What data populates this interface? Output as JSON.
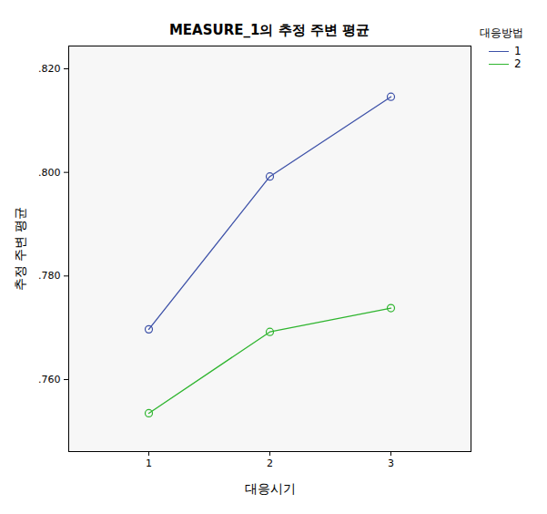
{
  "chart_data": {
    "type": "line",
    "title": "MEASURE_1의 추정 주변 평균",
    "x_label": "대응시기",
    "y_label": "추정 주변 평균",
    "legend_title": "대응방법",
    "categories": [
      "1",
      "2",
      "3"
    ],
    "series": [
      {
        "name": "1",
        "color": "#3d51a8",
        "values": [
          0.7697,
          0.7992,
          0.8146
        ]
      },
      {
        "name": "2",
        "color": "#2fb52f",
        "values": [
          0.7535,
          0.7692,
          0.7738
        ]
      }
    ],
    "ylim": [
      0.7461,
      0.8244
    ],
    "yticks": [
      {
        "value": 0.76,
        "label": ".760"
      },
      {
        "value": 0.78,
        "label": ".780"
      },
      {
        "value": 0.8,
        "label": ".800"
      },
      {
        "value": 0.82,
        "label": ".820"
      }
    ],
    "grid": false,
    "legend": "right",
    "marker": "circle"
  }
}
